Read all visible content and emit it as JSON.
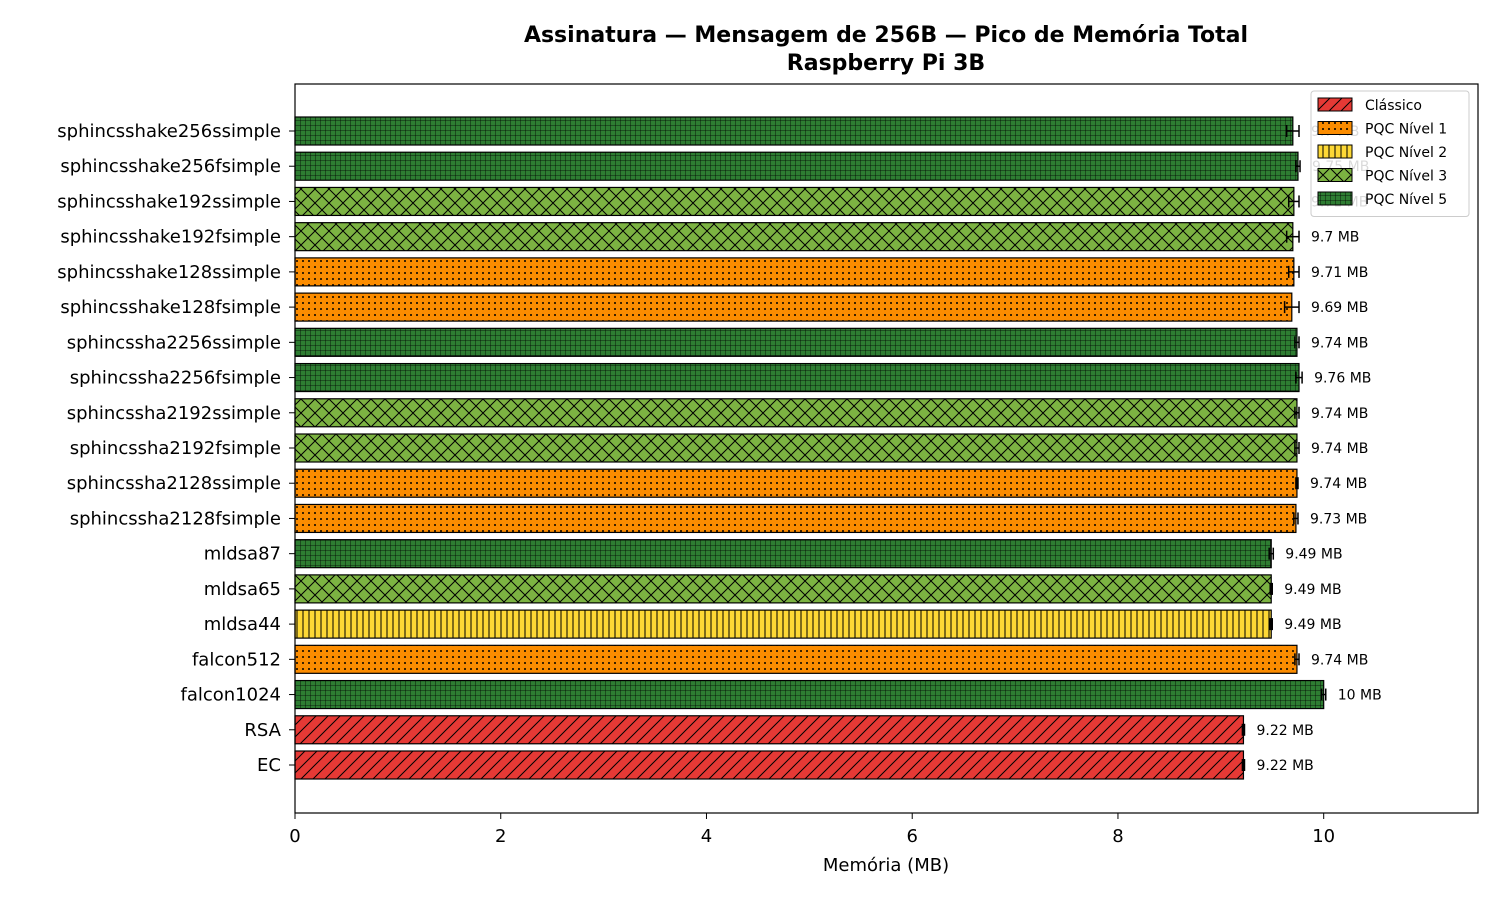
{
  "chart_data": {
    "type": "bar",
    "orientation": "horizontal",
    "title": "Assinatura — Mensagem de 256B — Pico de Memória Total",
    "subtitle": "Raspberry Pi 3B",
    "xlabel": "Memória (MB)",
    "ylabel": "",
    "xlim": [
      0,
      11.5
    ],
    "xticks": [
      0,
      2,
      4,
      6,
      8,
      10
    ],
    "legend_position": "top-right",
    "grid": false,
    "categories": [
      "sphincsshake256ssimple",
      "sphincsshake256fsimple",
      "sphincsshake192ssimple",
      "sphincsshake192fsimple",
      "sphincsshake128ssimple",
      "sphincsshake128fsimple",
      "sphincssha2256ssimple",
      "sphincssha2256fsimple",
      "sphincssha2192ssimple",
      "sphincssha2192fsimple",
      "sphincssha2128ssimple",
      "sphincssha2128fsimple",
      "mldsa87",
      "mldsa65",
      "mldsa44",
      "falcon512",
      "falcon1024",
      "RSA",
      "EC"
    ],
    "values": [
      9.7,
      9.75,
      9.71,
      9.7,
      9.71,
      9.69,
      9.74,
      9.76,
      9.74,
      9.74,
      9.74,
      9.73,
      9.49,
      9.49,
      9.49,
      9.74,
      10.0,
      9.22,
      9.22
    ],
    "errors": [
      0.06,
      0.02,
      0.05,
      0.06,
      0.05,
      0.07,
      0.02,
      0.03,
      0.02,
      0.02,
      0.01,
      0.02,
      0.02,
      0.01,
      0.01,
      0.02,
      0.02,
      0.01,
      0.01
    ],
    "value_labels": [
      "9.7 MB",
      "9.75 MB",
      "9.71 MB",
      "9.7 MB",
      "9.71 MB",
      "9.69 MB",
      "9.74 MB",
      "9.76 MB",
      "9.74 MB",
      "9.74 MB",
      "9.74 MB",
      "9.73 MB",
      "9.49 MB",
      "9.49 MB",
      "9.49 MB",
      "9.74 MB",
      "10 MB",
      "9.22 MB",
      "9.22 MB"
    ],
    "groups": [
      "nivel5",
      "nivel5",
      "nivel3",
      "nivel3",
      "nivel1",
      "nivel1",
      "nivel5",
      "nivel5",
      "nivel3",
      "nivel3",
      "nivel1",
      "nivel1",
      "nivel5",
      "nivel3",
      "nivel2",
      "nivel1",
      "nivel5",
      "classico",
      "classico"
    ],
    "legend": [
      {
        "key": "classico",
        "label": "Clássico",
        "color": "#e53935",
        "pattern": "diagonal"
      },
      {
        "key": "nivel1",
        "label": "PQC Nível 1",
        "color": "#fb8c00",
        "pattern": "dots"
      },
      {
        "key": "nivel2",
        "label": "PQC Nível 2",
        "color": "#fdd835",
        "pattern": "vertical"
      },
      {
        "key": "nivel3",
        "label": "PQC Nível 3",
        "color": "#7cb342",
        "pattern": "crosshatch"
      },
      {
        "key": "nivel5",
        "label": "PQC Nível 5",
        "color": "#2e7d32",
        "pattern": "grid"
      }
    ]
  }
}
